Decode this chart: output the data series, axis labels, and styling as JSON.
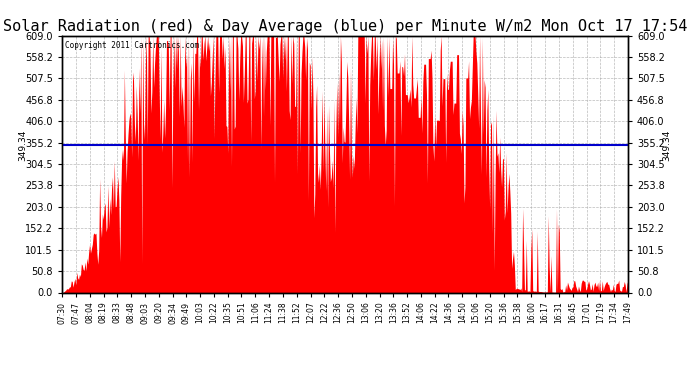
{
  "title": "Solar Radiation (red) & Day Average (blue) per Minute W/m2 Mon Oct 17 17:54",
  "copyright": "Copyright 2011 Cartronics.com",
  "avg_value": 349.34,
  "y_max": 609.0,
  "y_min": 0.0,
  "y_ticks": [
    0.0,
    50.8,
    101.5,
    152.2,
    203.0,
    253.8,
    304.5,
    355.2,
    406.0,
    456.8,
    507.5,
    558.2,
    609.0
  ],
  "x_labels": [
    "07:30",
    "07:47",
    "08:04",
    "08:19",
    "08:33",
    "08:48",
    "09:03",
    "09:20",
    "09:34",
    "09:49",
    "10:03",
    "10:22",
    "10:35",
    "10:51",
    "11:06",
    "11:24",
    "11:38",
    "11:52",
    "12:07",
    "12:22",
    "12:36",
    "12:50",
    "13:06",
    "13:20",
    "13:36",
    "13:52",
    "14:06",
    "14:22",
    "14:36",
    "14:50",
    "15:06",
    "15:20",
    "15:36",
    "15:38",
    "16:00",
    "16:17",
    "16:31",
    "16:45",
    "17:01",
    "17:19",
    "17:34",
    "17:49"
  ],
  "bar_color": "#ff0000",
  "line_color": "#0000cc",
  "background_color": "#ffffff",
  "grid_color": "#aaaaaa",
  "title_fontsize": 11,
  "annotation_fontsize": 7,
  "avg_label": "349.34"
}
